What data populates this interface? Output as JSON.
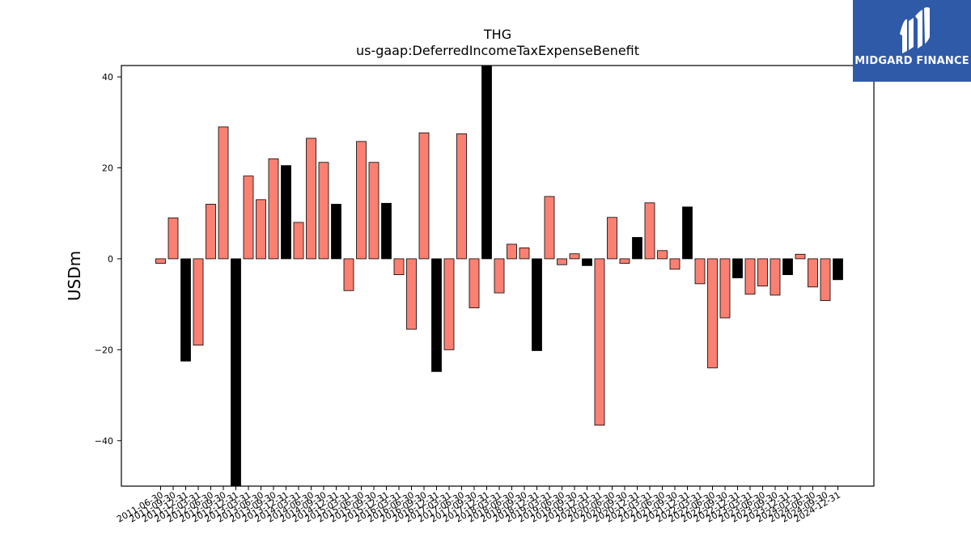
{
  "brand": {
    "name": "MIDGARD FINANCE",
    "bg_color": "#2f5aa8",
    "icon": "midgard-logo-icon"
  },
  "chart_data": {
    "type": "bar",
    "title": "THG",
    "subtitle": "us-gaap:DeferredIncomeTaxExpenseBenefit",
    "xlabel": "",
    "ylabel": "USDm",
    "ylim": [
      -50,
      42.5
    ],
    "yticks": [
      -40,
      -20,
      0,
      20,
      40
    ],
    "grid": false,
    "colors": {
      "quarterly": "#fa8072",
      "annual": "#000000",
      "edge": "#000000"
    },
    "categories": [
      "2011-06-30",
      "2011-09-30",
      "2011-12-31",
      "2012-03-31",
      "2012-06-30",
      "2012-09-30",
      "2012-12-31",
      "2013-03-31",
      "2013-06-30",
      "2013-09-30",
      "2013-12-31",
      "2014-03-31",
      "2014-06-30",
      "2014-09-30",
      "2014-12-31",
      "2015-03-31",
      "2015-06-30",
      "2015-09-30",
      "2015-12-31",
      "2016-03-31",
      "2016-06-30",
      "2016-09-30",
      "2016-12-31",
      "2017-03-31",
      "2017-06-30",
      "2017-09-30",
      "2017-12-31",
      "2018-03-31",
      "2018-06-30",
      "2018-09-30",
      "2018-12-31",
      "2019-03-31",
      "2019-06-30",
      "2019-09-30",
      "2019-12-31",
      "2020-03-31",
      "2020-06-30",
      "2020-09-30",
      "2020-12-31",
      "2021-03-31",
      "2021-06-30",
      "2021-09-30",
      "2021-12-31",
      "2022-03-31",
      "2022-06-30",
      "2022-09-30",
      "2022-12-31",
      "2023-03-31",
      "2023-06-30",
      "2023-09-30",
      "2023-12-31",
      "2024-03-31",
      "2024-06-30",
      "2024-09-30",
      "2024-12-31"
    ],
    "values": [
      -1,
      9,
      -22.5,
      -19,
      12,
      29,
      -54,
      18.2,
      13,
      22,
      20.5,
      8,
      26.5,
      21.2,
      12,
      -7,
      25.8,
      21.2,
      12.2,
      -3.5,
      -15.5,
      27.7,
      -24.8,
      -20,
      27.5,
      -10.8,
      42.5,
      -7.5,
      3.2,
      2.4,
      -20.2,
      13.7,
      -1.3,
      1.1,
      -1.5,
      -36.6,
      9.1,
      -1,
      4.7,
      12.3,
      1.8,
      -2.3,
      11.4,
      -5.5,
      -24,
      -13,
      -4.2,
      -7.8,
      -6,
      -8,
      -3.5,
      1,
      -6.2,
      -9.2,
      -4.6
    ],
    "annual": [
      false,
      false,
      true,
      false,
      false,
      false,
      true,
      false,
      false,
      false,
      true,
      false,
      false,
      false,
      true,
      false,
      false,
      false,
      true,
      false,
      false,
      false,
      true,
      false,
      false,
      false,
      true,
      false,
      false,
      false,
      true,
      false,
      false,
      false,
      true,
      false,
      false,
      false,
      true,
      false,
      false,
      false,
      true,
      false,
      false,
      false,
      true,
      false,
      false,
      false,
      true,
      false,
      false,
      false,
      true
    ]
  }
}
